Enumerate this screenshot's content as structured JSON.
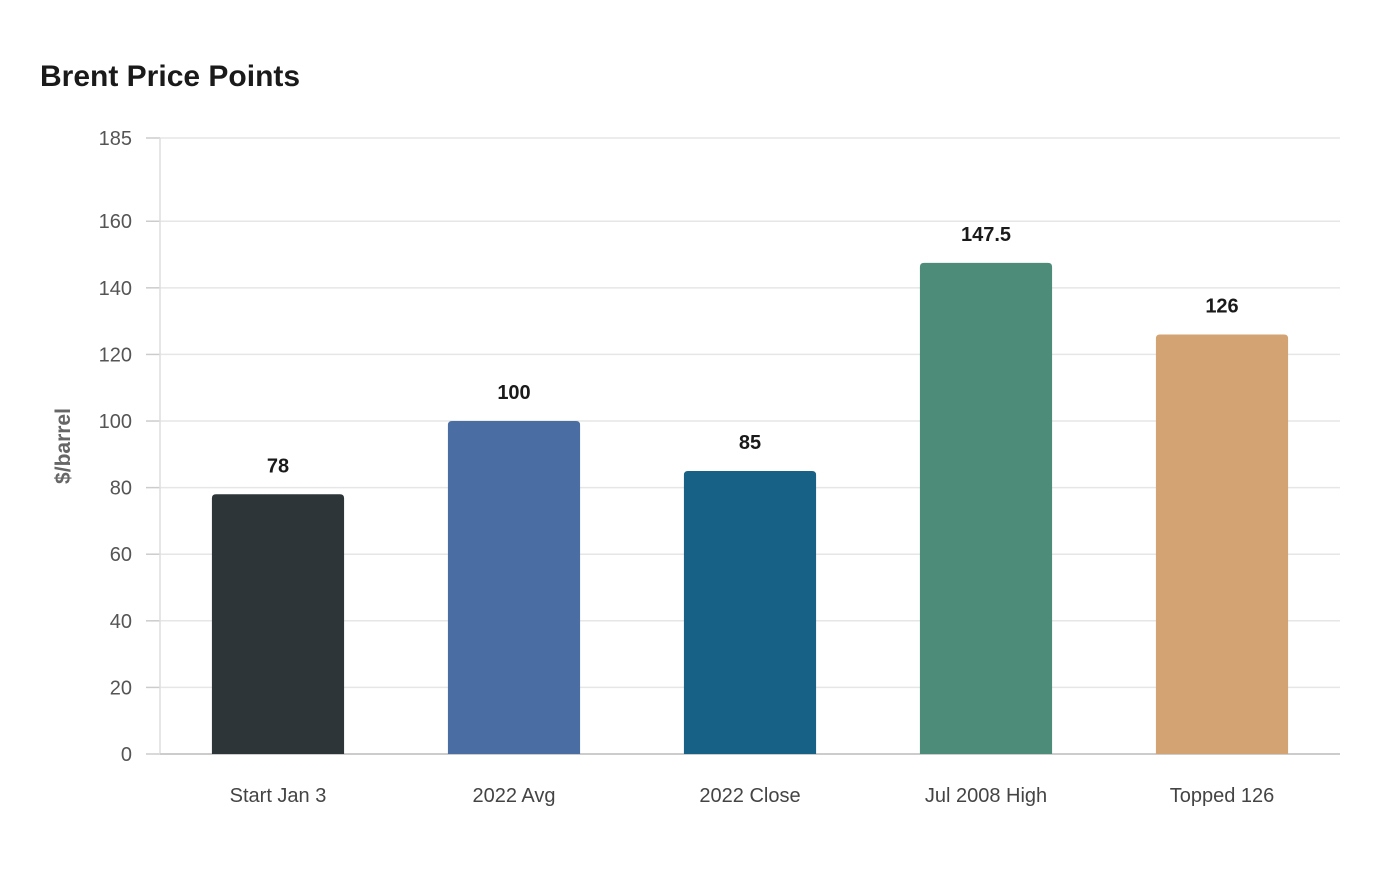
{
  "chart_data": {
    "type": "bar",
    "title": "Brent Price Points",
    "xlabel": "",
    "ylabel": "$/barrel",
    "categories": [
      "Start Jan 3",
      "2022 Avg",
      "2022 Close",
      "Jul 2008 High",
      "Topped 126"
    ],
    "values": [
      78,
      100,
      85,
      147.5,
      126
    ],
    "value_labels": [
      "78",
      "100",
      "85",
      "147.5",
      "126"
    ],
    "colors": [
      "#2e3538",
      "#4a6ea3",
      "#176186",
      "#4e8c7a",
      "#d3a373"
    ],
    "ylim": [
      0,
      185
    ],
    "yticks": [
      0,
      20,
      40,
      60,
      80,
      100,
      120,
      140,
      160,
      185
    ],
    "grid": true,
    "legend": "none"
  }
}
